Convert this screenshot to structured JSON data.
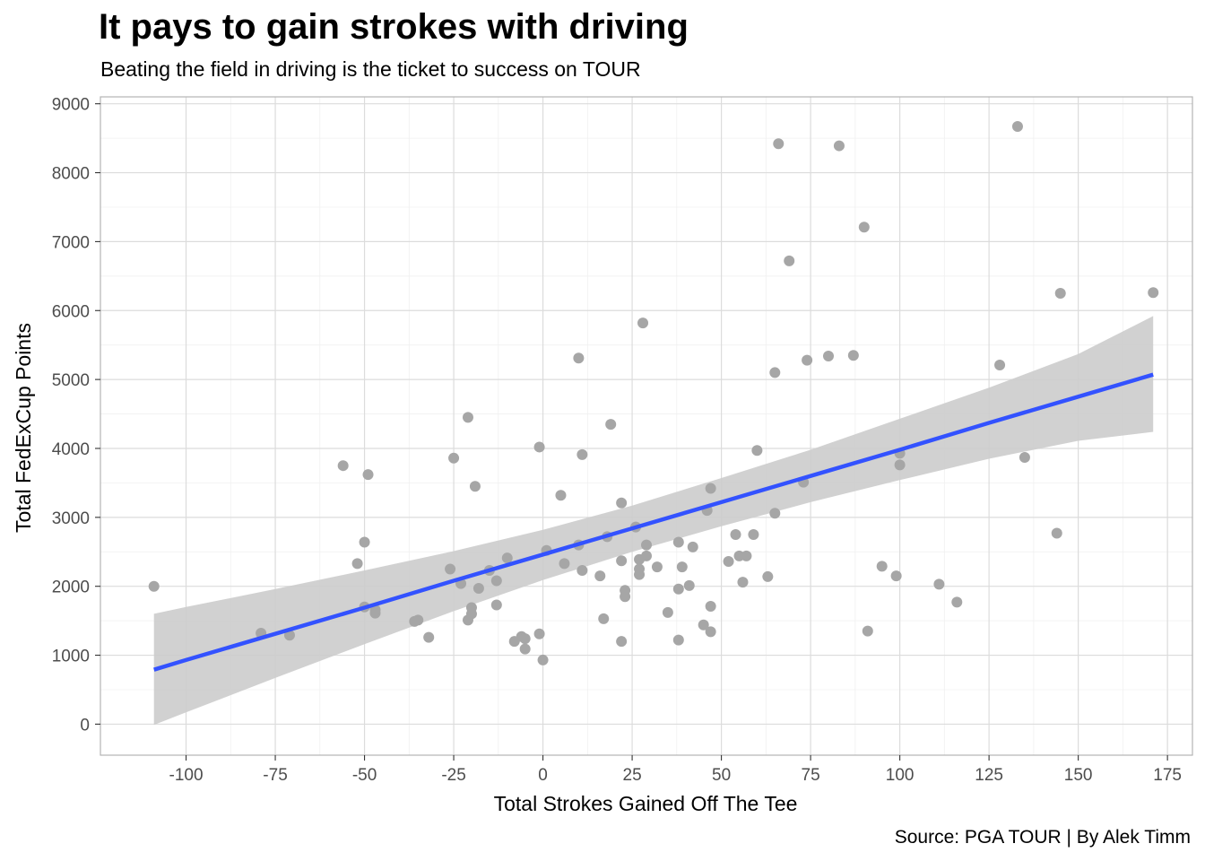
{
  "chart_data": {
    "type": "scatter",
    "title": "It pays to gain strokes with driving",
    "subtitle": "Beating the field in driving is the ticket to success on TOUR",
    "caption": "Source: PGA TOUR | By Alek Timm",
    "xlabel": "Total Strokes Gained Off The Tee",
    "ylabel": "Total FedExCup Points",
    "xlim": [
      -124,
      182
    ],
    "ylim": [
      -450,
      9100
    ],
    "x_ticks": [
      -100,
      -75,
      -50,
      -25,
      0,
      25,
      50,
      75,
      100,
      125,
      150,
      175
    ],
    "x_tick_labels": [
      "-100",
      "-75",
      "-50",
      "-25",
      "0",
      "25",
      "50",
      "75",
      "100",
      "125",
      "150",
      "175"
    ],
    "y_ticks": [
      0,
      1000,
      2000,
      3000,
      4000,
      5000,
      6000,
      7000,
      8000,
      9000
    ],
    "y_tick_labels": [
      "0",
      "1000",
      "2000",
      "3000",
      "4000",
      "5000",
      "6000",
      "7000",
      "8000",
      "9000"
    ],
    "grid": true,
    "point_color": "#a6a6a6",
    "line_color": "#3352ff",
    "band_color": "#cccccc",
    "points": [
      {
        "x": -109,
        "y": 2000
      },
      {
        "x": -79,
        "y": 1320
      },
      {
        "x": -71,
        "y": 1290
      },
      {
        "x": -56,
        "y": 3750
      },
      {
        "x": -52,
        "y": 2330
      },
      {
        "x": -50,
        "y": 2640
      },
      {
        "x": -50,
        "y": 1700
      },
      {
        "x": -49,
        "y": 3620
      },
      {
        "x": -47,
        "y": 1610
      },
      {
        "x": -47,
        "y": 1660
      },
      {
        "x": -36,
        "y": 1490
      },
      {
        "x": -35,
        "y": 1510
      },
      {
        "x": -32,
        "y": 1260
      },
      {
        "x": -26,
        "y": 2250
      },
      {
        "x": -25,
        "y": 3860
      },
      {
        "x": -23,
        "y": 2040
      },
      {
        "x": -21,
        "y": 4450
      },
      {
        "x": -21,
        "y": 1510
      },
      {
        "x": -20,
        "y": 1600
      },
      {
        "x": -20,
        "y": 1690
      },
      {
        "x": -19,
        "y": 3450
      },
      {
        "x": -18,
        "y": 1970
      },
      {
        "x": -15,
        "y": 2230
      },
      {
        "x": -13,
        "y": 2080
      },
      {
        "x": -13,
        "y": 1730
      },
      {
        "x": -10,
        "y": 2410
      },
      {
        "x": -8,
        "y": 1200
      },
      {
        "x": -6,
        "y": 1270
      },
      {
        "x": -5,
        "y": 1240
      },
      {
        "x": -5,
        "y": 1090
      },
      {
        "x": -1,
        "y": 4020
      },
      {
        "x": -1,
        "y": 1310
      },
      {
        "x": 0,
        "y": 930
      },
      {
        "x": 1,
        "y": 2520
      },
      {
        "x": 5,
        "y": 3320
      },
      {
        "x": 6,
        "y": 2330
      },
      {
        "x": 10,
        "y": 5310
      },
      {
        "x": 10,
        "y": 2600
      },
      {
        "x": 11,
        "y": 3910
      },
      {
        "x": 11,
        "y": 2230
      },
      {
        "x": 16,
        "y": 2150
      },
      {
        "x": 17,
        "y": 1530
      },
      {
        "x": 18,
        "y": 2720
      },
      {
        "x": 19,
        "y": 4350
      },
      {
        "x": 22,
        "y": 3210
      },
      {
        "x": 22,
        "y": 2370
      },
      {
        "x": 22,
        "y": 1200
      },
      {
        "x": 23,
        "y": 1850
      },
      {
        "x": 23,
        "y": 1940
      },
      {
        "x": 26,
        "y": 2860
      },
      {
        "x": 27,
        "y": 2170
      },
      {
        "x": 27,
        "y": 2250
      },
      {
        "x": 27,
        "y": 2390
      },
      {
        "x": 28,
        "y": 5820
      },
      {
        "x": 29,
        "y": 2440
      },
      {
        "x": 29,
        "y": 2600
      },
      {
        "x": 32,
        "y": 2280
      },
      {
        "x": 35,
        "y": 1620
      },
      {
        "x": 38,
        "y": 1220
      },
      {
        "x": 38,
        "y": 1960
      },
      {
        "x": 38,
        "y": 2640
      },
      {
        "x": 39,
        "y": 2280
      },
      {
        "x": 41,
        "y": 2010
      },
      {
        "x": 42,
        "y": 2570
      },
      {
        "x": 45,
        "y": 1440
      },
      {
        "x": 46,
        "y": 3100
      },
      {
        "x": 47,
        "y": 3420
      },
      {
        "x": 47,
        "y": 1710
      },
      {
        "x": 47,
        "y": 1340
      },
      {
        "x": 52,
        "y": 2360
      },
      {
        "x": 54,
        "y": 2750
      },
      {
        "x": 55,
        "y": 2440
      },
      {
        "x": 56,
        "y": 2060
      },
      {
        "x": 57,
        "y": 2440
      },
      {
        "x": 59,
        "y": 2750
      },
      {
        "x": 60,
        "y": 3970
      },
      {
        "x": 63,
        "y": 2140
      },
      {
        "x": 65,
        "y": 3060
      },
      {
        "x": 65,
        "y": 5100
      },
      {
        "x": 66,
        "y": 8420
      },
      {
        "x": 69,
        "y": 6720
      },
      {
        "x": 73,
        "y": 3510
      },
      {
        "x": 74,
        "y": 5280
      },
      {
        "x": 80,
        "y": 5340
      },
      {
        "x": 83,
        "y": 8390
      },
      {
        "x": 87,
        "y": 5350
      },
      {
        "x": 90,
        "y": 7210
      },
      {
        "x": 91,
        "y": 1350
      },
      {
        "x": 95,
        "y": 2290
      },
      {
        "x": 99,
        "y": 2150
      },
      {
        "x": 100,
        "y": 3930
      },
      {
        "x": 100,
        "y": 3760
      },
      {
        "x": 111,
        "y": 2030
      },
      {
        "x": 116,
        "y": 1770
      },
      {
        "x": 128,
        "y": 5210
      },
      {
        "x": 133,
        "y": 8670
      },
      {
        "x": 135,
        "y": 3870
      },
      {
        "x": 144,
        "y": 2770
      },
      {
        "x": 145,
        "y": 6250
      },
      {
        "x": 171,
        "y": 6260
      }
    ],
    "fit": {
      "x": [
        -109,
        -100,
        -75,
        -50,
        -25,
        0,
        25,
        50,
        75,
        100,
        125,
        150,
        171
      ],
      "y": [
        790,
        930,
        1310,
        1690,
        2080,
        2460,
        2840,
        3220,
        3600,
        3980,
        4370,
        4750,
        5070
      ],
      "lower": [
        -10,
        170,
        670,
        1160,
        1640,
        2090,
        2500,
        2870,
        3220,
        3540,
        3850,
        4110,
        4240
      ],
      "upper": [
        1600,
        1700,
        1960,
        2230,
        2510,
        2820,
        3170,
        3570,
        3980,
        4430,
        4880,
        5370,
        5920
      ]
    }
  }
}
